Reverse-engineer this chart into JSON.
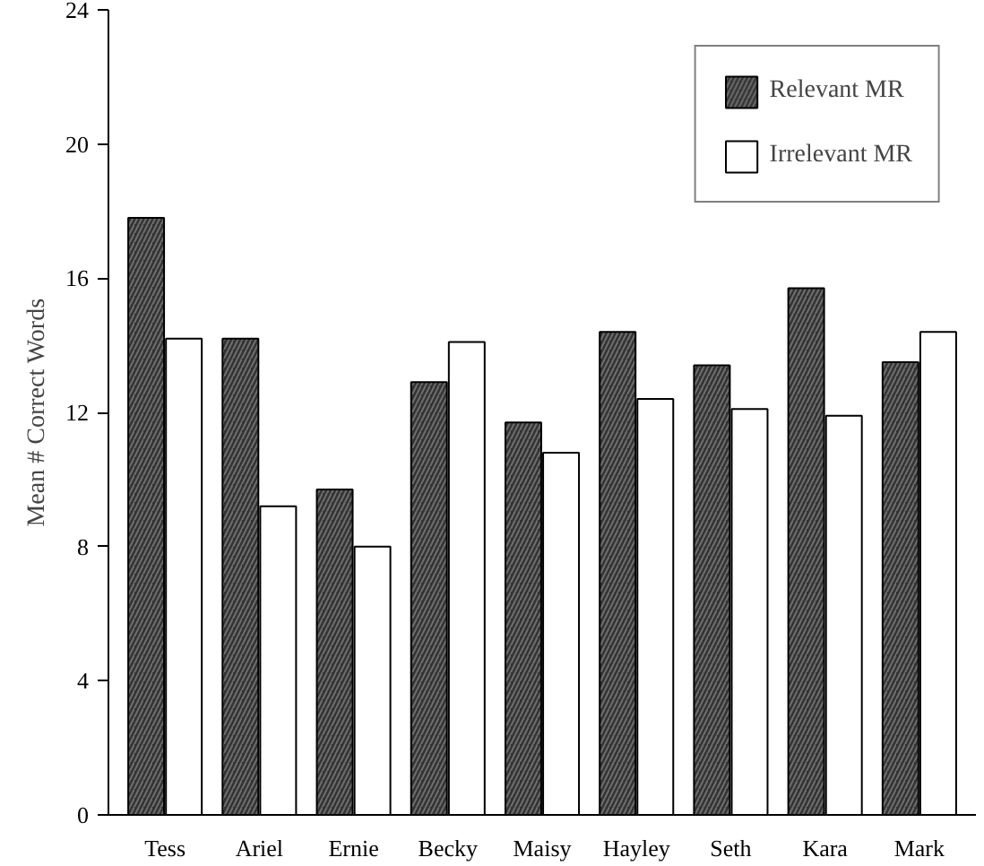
{
  "chart_data": {
    "type": "bar",
    "ylabel": "Mean # Correct Words",
    "categories": [
      "Tess",
      "Ariel",
      "Ernie",
      "Becky",
      "Maisy",
      "Hayley",
      "Seth",
      "Kara",
      "Mark"
    ],
    "series": [
      {
        "name": "Relevant MR",
        "color": "#333333",
        "values": [
          17.8,
          14.2,
          9.7,
          12.9,
          11.7,
          14.4,
          13.4,
          15.7,
          13.5
        ]
      },
      {
        "name": "Irrelevant MR",
        "color": "#ffffff",
        "values": [
          14.2,
          9.2,
          8.0,
          14.1,
          10.8,
          12.4,
          12.1,
          11.9,
          14.4
        ]
      }
    ],
    "ylim": [
      0,
      24
    ],
    "yticks": [
      0,
      4,
      8,
      12,
      16,
      20,
      24
    ],
    "grid": false,
    "legend": "top right"
  }
}
